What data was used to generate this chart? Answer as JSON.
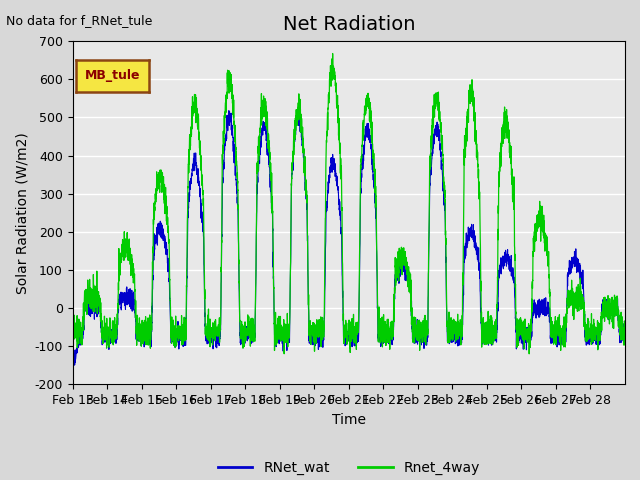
{
  "title": "Net Radiation",
  "xlabel": "Time",
  "ylabel": "Solar Radiation (W/m2)",
  "no_data_text": "No data for f_RNet_tule",
  "station_label": "MB_tule",
  "ylim": [
    -200,
    700
  ],
  "yticks": [
    -200,
    -100,
    0,
    100,
    200,
    300,
    400,
    500,
    600,
    700
  ],
  "x_tick_labels": [
    "Feb 13",
    "Feb 14",
    "Feb 15",
    "Feb 16",
    "Feb 17",
    "Feb 18",
    "Feb 19",
    "Feb 20",
    "Feb 21",
    "Feb 22",
    "Feb 23",
    "Feb 24",
    "Feb 25",
    "Feb 26",
    "Feb 27",
    "Feb 28"
  ],
  "line1_color": "#0000cc",
  "line2_color": "#00cc00",
  "line1_label": "RNet_wat",
  "line2_label": "Rnet_4way",
  "fig_facecolor": "#d8d8d8",
  "plot_bg_color": "#e8e8e8",
  "title_fontsize": 14,
  "label_fontsize": 10,
  "tick_fontsize": 9,
  "n_points": 3840,
  "days": 16
}
